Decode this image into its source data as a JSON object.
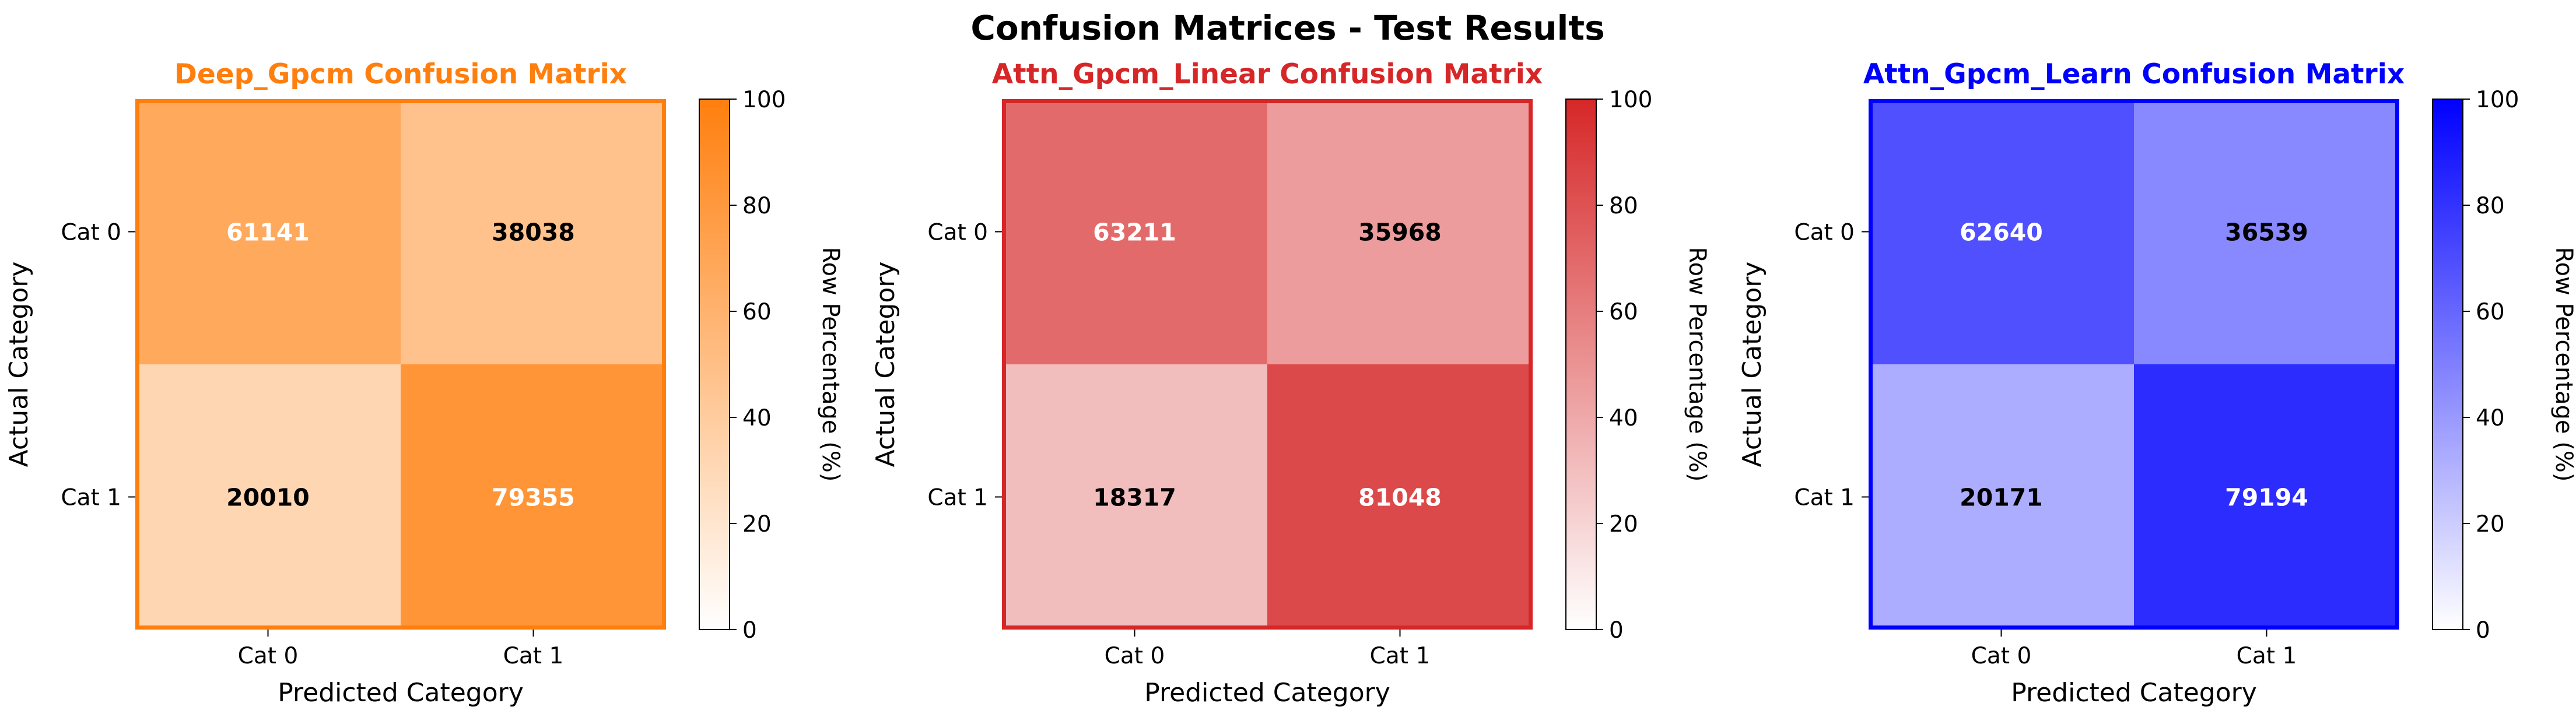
{
  "figure": {
    "title": "Confusion Matrices - Test Results"
  },
  "chart_data": [
    {
      "type": "heatmap",
      "title": "Deep_Gpcm Confusion Matrix",
      "title_color": "#ff7f0e",
      "accent_color": "#ff7f0e",
      "xlabel": "Predicted Category",
      "ylabel": "Actual Category",
      "x_categories": [
        "Cat 0",
        "Cat 1"
      ],
      "y_categories": [
        "Cat 0",
        "Cat 1"
      ],
      "values": [
        [
          61141,
          38038
        ],
        [
          20010,
          79355
        ]
      ],
      "colorbar": {
        "label": "Row Percentage (%)",
        "range": [
          0,
          100
        ],
        "ticks": [
          "0",
          "20",
          "40",
          "60",
          "80",
          "100"
        ]
      }
    },
    {
      "type": "heatmap",
      "title": "Attn_Gpcm_Linear Confusion Matrix",
      "title_color": "#d62728",
      "accent_color": "#d62728",
      "xlabel": "Predicted Category",
      "ylabel": "Actual Category",
      "x_categories": [
        "Cat 0",
        "Cat 1"
      ],
      "y_categories": [
        "Cat 0",
        "Cat 1"
      ],
      "values": [
        [
          63211,
          35968
        ],
        [
          18317,
          81048
        ]
      ],
      "colorbar": {
        "label": "Row Percentage (%)",
        "range": [
          0,
          100
        ],
        "ticks": [
          "0",
          "20",
          "40",
          "60",
          "80",
          "100"
        ]
      }
    },
    {
      "type": "heatmap",
      "title": "Attn_Gpcm_Learn Confusion Matrix",
      "title_color": "#0000ff",
      "accent_color": "#0000ff",
      "xlabel": "Predicted Category",
      "ylabel": "Actual Category",
      "x_categories": [
        "Cat 0",
        "Cat 1"
      ],
      "y_categories": [
        "Cat 0",
        "Cat 1"
      ],
      "values": [
        [
          62640,
          36539
        ],
        [
          20171,
          79194
        ]
      ],
      "colorbar": {
        "label": "Row Percentage (%)",
        "range": [
          0,
          100
        ],
        "ticks": [
          "0",
          "20",
          "40",
          "60",
          "80",
          "100"
        ]
      }
    }
  ]
}
